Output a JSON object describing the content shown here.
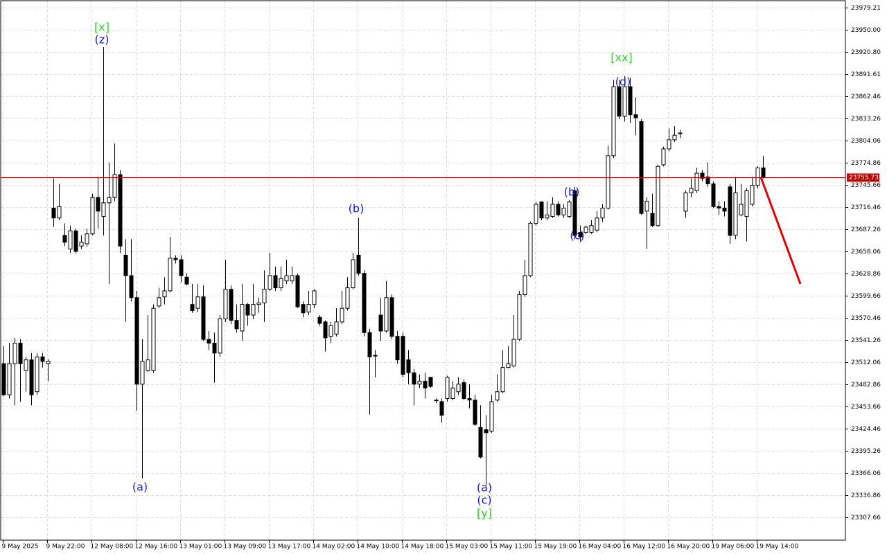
{
  "chart_data": {
    "type": "candlestick",
    "categories": [
      "9 May 2025",
      null,
      null,
      null,
      null,
      null,
      null,
      null,
      "9 May 22:00",
      null,
      null,
      null,
      null,
      null,
      null,
      null,
      "12 May 08:00",
      null,
      null,
      null,
      null,
      null,
      null,
      null,
      "12 May 16:00",
      null,
      null,
      null,
      null,
      null,
      null,
      null,
      "13 May 01:00",
      null,
      null,
      null,
      null,
      null,
      null,
      null,
      "13 May 09:00",
      null,
      null,
      null,
      null,
      null,
      null,
      null,
      "13 May 17:00",
      null,
      null,
      null,
      null,
      null,
      null,
      null,
      "14 May 02:00",
      null,
      null,
      null,
      null,
      null,
      null,
      null,
      "14 May 10:00",
      null,
      null,
      null,
      null,
      null,
      null,
      null,
      "14 May 18:00",
      null,
      null,
      null,
      null,
      null,
      null,
      null,
      "15 May 03:00",
      null,
      null,
      null,
      null,
      null,
      null,
      null,
      "15 May 11:00",
      null,
      null,
      null,
      null,
      null,
      null,
      null,
      "15 May 19:00",
      null,
      null,
      null,
      null,
      null,
      null,
      null,
      "16 May 04:00",
      null,
      null,
      null,
      null,
      null,
      null,
      null,
      "16 May 12:00",
      null,
      null,
      null,
      null,
      null,
      null,
      null,
      "16 May 20:00",
      null,
      null,
      null,
      null,
      null,
      null,
      null,
      "19 May 06:00",
      null,
      null,
      null,
      null,
      null,
      null,
      null,
      "19 May 14:00",
      null
    ],
    "ohlc": [
      [
        23510,
        23533,
        23467,
        23469
      ],
      [
        23469,
        23537,
        23464,
        23510
      ],
      [
        23510,
        23544,
        23455,
        23537
      ],
      [
        23537,
        23542,
        23460,
        23510
      ],
      [
        23501,
        23519,
        23473,
        23515
      ],
      [
        23515,
        23524,
        23455,
        23469
      ],
      [
        23473,
        23524,
        23469,
        23519
      ],
      [
        23519,
        23524,
        23505,
        23513
      ],
      [
        23510,
        23516,
        23487,
        23513
      ],
      [
        23715,
        23754,
        23690,
        23702
      ],
      [
        23702,
        23747,
        23699,
        23717
      ],
      [
        23679,
        23695,
        23665,
        23670
      ],
      [
        23661,
        23692,
        23656,
        23685
      ],
      [
        23685,
        23688,
        23655,
        23658
      ],
      [
        23665,
        23679,
        23661,
        23670
      ],
      [
        23668,
        23688,
        23664,
        23681
      ],
      [
        23681,
        23734,
        23679,
        23729
      ],
      [
        23729,
        23756,
        23688,
        23711
      ],
      [
        23704,
        23927,
        23679,
        23722
      ],
      [
        23722,
        23775,
        23615,
        23729
      ],
      [
        23729,
        23800,
        23724,
        23759
      ],
      [
        23759,
        23765,
        23656,
        23665
      ],
      [
        23653,
        23674,
        23565,
        23626
      ],
      [
        23626,
        23674,
        23592,
        23597
      ],
      [
        23597,
        23606,
        23448,
        23483
      ],
      [
        23483,
        23542,
        23359,
        23513
      ],
      [
        23501,
        23574,
        23499,
        23515
      ],
      [
        23501,
        23588,
        23498,
        23583
      ],
      [
        23586,
        23610,
        23583,
        23597
      ],
      [
        23598,
        23624,
        23588,
        23606
      ],
      [
        23606,
        23677,
        23604,
        23649
      ],
      [
        23649,
        23653,
        23642,
        23647
      ],
      [
        23647,
        23653,
        23617,
        23626
      ],
      [
        23624,
        23629,
        23613,
        23615
      ],
      [
        23588,
        23615,
        23577,
        23580
      ],
      [
        23583,
        23615,
        23578,
        23598
      ],
      [
        23598,
        23613,
        23540,
        23542
      ],
      [
        23542,
        23553,
        23528,
        23537
      ],
      [
        23537,
        23551,
        23485,
        23524
      ],
      [
        23524,
        23574,
        23519,
        23569
      ],
      [
        23569,
        23647,
        23565,
        23608
      ],
      [
        23608,
        23613,
        23562,
        23567
      ],
      [
        23567,
        23588,
        23551,
        23556
      ],
      [
        23553,
        23615,
        23540,
        23588
      ],
      [
        23588,
        23590,
        23560,
        23574
      ],
      [
        23574,
        23615,
        23569,
        23588
      ],
      [
        23588,
        23597,
        23577,
        23590
      ],
      [
        23590,
        23633,
        23565,
        23608
      ],
      [
        23608,
        23656,
        23606,
        23626
      ],
      [
        23626,
        23638,
        23606,
        23610
      ],
      [
        23610,
        23638,
        23606,
        23622
      ],
      [
        23619,
        23647,
        23615,
        23626
      ],
      [
        23619,
        23638,
        23615,
        23626
      ],
      [
        23626,
        23629,
        23583,
        23585
      ],
      [
        23588,
        23592,
        23571,
        23577
      ],
      [
        23578,
        23606,
        23574,
        23588
      ],
      [
        23588,
        23608,
        23583,
        23606
      ],
      [
        23571,
        23574,
        23560,
        23563
      ],
      [
        23565,
        23567,
        23526,
        23544
      ],
      [
        23546,
        23565,
        23537,
        23560
      ],
      [
        23549,
        23583,
        23546,
        23565
      ],
      [
        23565,
        23606,
        23562,
        23583
      ],
      [
        23583,
        23624,
        23580,
        23610
      ],
      [
        23610,
        23656,
        23608,
        23647
      ],
      [
        23653,
        23702,
        23626,
        23629
      ],
      [
        23629,
        23633,
        23546,
        23551
      ],
      [
        23551,
        23556,
        23443,
        23519
      ],
      [
        23521,
        23528,
        23492,
        23520
      ],
      [
        23574,
        23597,
        23540,
        23553
      ],
      [
        23553,
        23619,
        23551,
        23597
      ],
      [
        23597,
        23601,
        23542,
        23546
      ],
      [
        23546,
        23553,
        23510,
        23515
      ],
      [
        23546,
        23551,
        23492,
        23496
      ],
      [
        23515,
        23528,
        23483,
        23498
      ],
      [
        23498,
        23503,
        23455,
        23483
      ],
      [
        23483,
        23496,
        23478,
        23487
      ],
      [
        23487,
        23498,
        23464,
        23478
      ],
      [
        23492,
        23492,
        23478,
        23480
      ],
      [
        23462,
        23464,
        23458,
        23462
      ],
      [
        23460,
        23464,
        23432,
        23442
      ],
      [
        23464,
        23494,
        23460,
        23492
      ],
      [
        23464,
        23487,
        23462,
        23478
      ],
      [
        23473,
        23492,
        23469,
        23483
      ],
      [
        23485,
        23489,
        23462,
        23464
      ],
      [
        23464,
        23483,
        23451,
        23462
      ],
      [
        23462,
        23469,
        23428,
        23430
      ],
      [
        23426,
        23455,
        23385,
        23387
      ],
      [
        23423,
        23442,
        23350,
        23419
      ],
      [
        23421,
        23469,
        23419,
        23460
      ],
      [
        23462,
        23496,
        23460,
        23473
      ],
      [
        23473,
        23528,
        23471,
        23505
      ],
      [
        23505,
        23533,
        23504,
        23510
      ],
      [
        23507,
        23574,
        23505,
        23542
      ],
      [
        23542,
        23606,
        23540,
        23601
      ],
      [
        23601,
        23647,
        23598,
        23626
      ],
      [
        23626,
        23697,
        23624,
        23695
      ],
      [
        23695,
        23723,
        23692,
        23720
      ],
      [
        23723,
        23724,
        23699,
        23702
      ],
      [
        23702,
        23724,
        23699,
        23706
      ],
      [
        23704,
        23729,
        23702,
        23720
      ],
      [
        23720,
        23724,
        23704,
        23706
      ],
      [
        23706,
        23720,
        23702,
        23715
      ],
      [
        23704,
        23726,
        23702,
        23723
      ],
      [
        23738,
        23743,
        23674,
        23679
      ],
      [
        23683,
        23692,
        23670,
        23677
      ],
      [
        23683,
        23692,
        23681,
        23690
      ],
      [
        23683,
        23699,
        23681,
        23692
      ],
      [
        23686,
        23711,
        23683,
        23702
      ],
      [
        23702,
        23720,
        23697,
        23715
      ],
      [
        23715,
        23797,
        23713,
        23784
      ],
      [
        23784,
        23884,
        23781,
        23875
      ],
      [
        23875,
        23884,
        23832,
        23836
      ],
      [
        23836,
        23889,
        23829,
        23875
      ],
      [
        23875,
        23887,
        23827,
        23838
      ],
      [
        23838,
        23861,
        23811,
        23834
      ],
      [
        23829,
        23832,
        23706,
        23708
      ],
      [
        23711,
        23729,
        23661,
        23724
      ],
      [
        23708,
        23734,
        23690,
        23692
      ],
      [
        23692,
        23772,
        23690,
        23770
      ],
      [
        23772,
        23796,
        23770,
        23793
      ],
      [
        23793,
        23820,
        23790,
        23805
      ],
      [
        23805,
        23823,
        23802,
        23811
      ],
      [
        23813,
        23818,
        23807,
        23814
      ],
      [
        23711,
        23738,
        23702,
        23735
      ],
      [
        23735,
        23754,
        23729,
        23741
      ],
      [
        23738,
        23768,
        23735,
        23761
      ],
      [
        23761,
        23765,
        23750,
        23754
      ],
      [
        23756,
        23775,
        23743,
        23747
      ],
      [
        23747,
        23750,
        23715,
        23717
      ],
      [
        23717,
        23724,
        23706,
        23715
      ],
      [
        23715,
        23724,
        23704,
        23711
      ],
      [
        23743,
        23747,
        23668,
        23679
      ],
      [
        23679,
        23756,
        23674,
        23735
      ],
      [
        23706,
        23747,
        23704,
        23720
      ],
      [
        23704,
        23741,
        23671,
        23738
      ],
      [
        23720,
        23756,
        23717,
        23745
      ],
      [
        23745,
        23770,
        23741,
        23768
      ],
      [
        23768,
        23784,
        23754,
        23756
      ]
    ],
    "bull_color": "#ffffff",
    "bear_color": "#000000",
    "ylim": [
      23277.45,
      23989.2
    ],
    "yticks": [
      23979.21,
      {
        "value": 23950,
        "label": "23950.00"
      },
      {
        "value": 23920.8,
        "label": "23920.80"
      },
      23891.61,
      23862.46,
      23833.26,
      23804.06,
      23774.86,
      23745.66,
      23716.46,
      23687.26,
      23658.06,
      23628.86,
      23599.66,
      23570.46,
      23541.26,
      23512.06,
      23482.86,
      23453.66,
      23424.46,
      23395.26,
      23366.06,
      23336.86,
      23307.66
    ],
    "grid": true,
    "current_price": 23755.73,
    "current_price_color": "#c00000",
    "annotations": [
      {
        "text": "[x]",
        "color": "#33cc33"
      },
      {
        "text": "(z)",
        "color": "#1a1acc"
      },
      {
        "text": "(a)",
        "color": "#1a1acc"
      },
      {
        "text": "(b)",
        "color": "#1a1acc"
      },
      {
        "text": "(a)",
        "color": "#1a1acc"
      },
      {
        "text": "(c)",
        "color": "#1a1acc"
      },
      {
        "text": "[y]",
        "color": "#33cc33"
      },
      {
        "text": "(b)",
        "color": "#1a1acc"
      },
      {
        "text": "(c)",
        "color": "#1a1acc"
      },
      {
        "text": "[xx]",
        "color": "#33cc33"
      },
      {
        "text": "(d)",
        "color": "#1a1acc"
      }
    ]
  }
}
